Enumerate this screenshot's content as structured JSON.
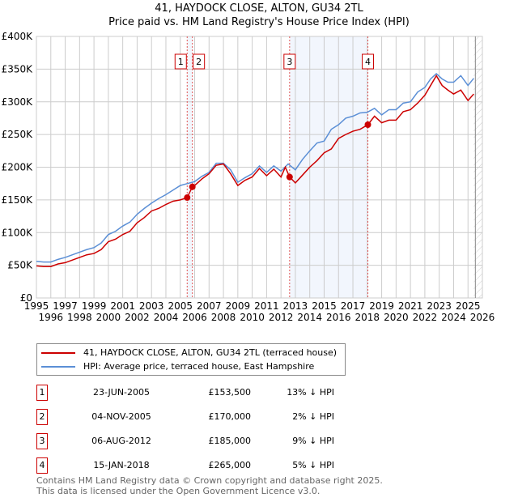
{
  "chart_data": {
    "type": "line",
    "title": "41, HAYDOCK CLOSE, ALTON, GU34 2TL",
    "subtitle": "Price paid vs. HM Land Registry's House Price Index (HPI)",
    "xlim": [
      1995,
      2026
    ],
    "ylim": [
      0,
      400000
    ],
    "x_ticks": [
      "1995",
      "1996",
      "1997",
      "1998",
      "1999",
      "2000",
      "2001",
      "2002",
      "2003",
      "2004",
      "2005",
      "2006",
      "2007",
      "2008",
      "2009",
      "2010",
      "2011",
      "2012",
      "2013",
      "2014",
      "2015",
      "2016",
      "2017",
      "2018",
      "2019",
      "2020",
      "2021",
      "2022",
      "2023",
      "2024",
      "2025",
      "2026"
    ],
    "y_ticks": [
      {
        "v": 0,
        "label": "£0"
      },
      {
        "v": 50000,
        "label": "£50K"
      },
      {
        "v": 100000,
        "label": "£100K"
      },
      {
        "v": 150000,
        "label": "£150K"
      },
      {
        "v": 200000,
        "label": "£200K"
      },
      {
        "v": 250000,
        "label": "£250K"
      },
      {
        "v": 300000,
        "label": "£300K"
      },
      {
        "v": 350000,
        "label": "£350K"
      },
      {
        "v": 400000,
        "label": "£400K"
      }
    ],
    "grid": true,
    "series": [
      {
        "name": "41, HAYDOCK CLOSE, ALTON, GU34 2TL (terraced house)",
        "color": "#cc0000",
        "points": [
          [
            1995,
            49000
          ],
          [
            1995.5,
            48000
          ],
          [
            1996,
            48000
          ],
          [
            1996.5,
            52000
          ],
          [
            1997,
            54000
          ],
          [
            1997.5,
            58000
          ],
          [
            1998,
            62000
          ],
          [
            1998.5,
            66000
          ],
          [
            1999,
            68000
          ],
          [
            1999.5,
            74000
          ],
          [
            2000,
            86000
          ],
          [
            2000.5,
            90000
          ],
          [
            2001,
            97000
          ],
          [
            2001.5,
            102000
          ],
          [
            2002,
            115000
          ],
          [
            2002.5,
            123000
          ],
          [
            2003,
            133000
          ],
          [
            2003.5,
            137000
          ],
          [
            2004,
            143000
          ],
          [
            2004.5,
            148000
          ],
          [
            2005,
            150000
          ],
          [
            2005.48,
            153500
          ],
          [
            2005.84,
            170000
          ],
          [
            2006,
            172000
          ],
          [
            2006.5,
            182000
          ],
          [
            2007,
            190000
          ],
          [
            2007.5,
            203000
          ],
          [
            2008,
            205000
          ],
          [
            2008.5,
            190000
          ],
          [
            2009,
            172000
          ],
          [
            2009.5,
            180000
          ],
          [
            2010,
            185000
          ],
          [
            2010.5,
            198000
          ],
          [
            2011,
            187000
          ],
          [
            2011.5,
            197000
          ],
          [
            2012,
            185000
          ],
          [
            2012.3,
            200000
          ],
          [
            2012.6,
            185000
          ],
          [
            2013,
            176000
          ],
          [
            2013.5,
            188000
          ],
          [
            2014,
            200000
          ],
          [
            2014.5,
            210000
          ],
          [
            2015,
            222000
          ],
          [
            2015.5,
            228000
          ],
          [
            2016,
            244000
          ],
          [
            2016.5,
            250000
          ],
          [
            2017,
            255000
          ],
          [
            2017.5,
            258000
          ],
          [
            2018.04,
            265000
          ],
          [
            2018.5,
            278000
          ],
          [
            2019,
            268000
          ],
          [
            2019.5,
            272000
          ],
          [
            2020,
            272000
          ],
          [
            2020.5,
            285000
          ],
          [
            2021,
            288000
          ],
          [
            2021.5,
            298000
          ],
          [
            2022,
            310000
          ],
          [
            2022.4,
            325000
          ],
          [
            2022.8,
            340000
          ],
          [
            2023.2,
            325000
          ],
          [
            2023.6,
            318000
          ],
          [
            2024,
            312000
          ],
          [
            2024.5,
            318000
          ],
          [
            2025,
            302000
          ],
          [
            2025.4,
            312000
          ]
        ]
      },
      {
        "name": "HPI: Average price, terraced house, East Hampshire",
        "color": "#5b8fd6",
        "points": [
          [
            1995,
            56000
          ],
          [
            1995.5,
            55000
          ],
          [
            1996,
            55000
          ],
          [
            1996.5,
            59000
          ],
          [
            1997,
            62000
          ],
          [
            1997.5,
            66000
          ],
          [
            1998,
            70000
          ],
          [
            1998.5,
            74000
          ],
          [
            1999,
            77000
          ],
          [
            1999.5,
            84000
          ],
          [
            2000,
            97000
          ],
          [
            2000.5,
            102000
          ],
          [
            2001,
            110000
          ],
          [
            2001.5,
            116000
          ],
          [
            2002,
            128000
          ],
          [
            2002.5,
            137000
          ],
          [
            2003,
            145000
          ],
          [
            2003.5,
            152000
          ],
          [
            2004,
            158000
          ],
          [
            2004.5,
            165000
          ],
          [
            2005,
            172000
          ],
          [
            2005.5,
            175000
          ],
          [
            2006,
            178000
          ],
          [
            2006.5,
            186000
          ],
          [
            2007,
            192000
          ],
          [
            2007.5,
            206000
          ],
          [
            2008,
            206000
          ],
          [
            2008.5,
            196000
          ],
          [
            2009,
            177000
          ],
          [
            2009.5,
            184000
          ],
          [
            2010,
            190000
          ],
          [
            2010.5,
            202000
          ],
          [
            2011,
            192000
          ],
          [
            2011.5,
            202000
          ],
          [
            2012,
            194000
          ],
          [
            2012.5,
            205000
          ],
          [
            2013,
            196000
          ],
          [
            2013.5,
            212000
          ],
          [
            2014,
            225000
          ],
          [
            2014.5,
            237000
          ],
          [
            2015,
            240000
          ],
          [
            2015.5,
            258000
          ],
          [
            2016,
            265000
          ],
          [
            2016.5,
            275000
          ],
          [
            2017,
            278000
          ],
          [
            2017.5,
            283000
          ],
          [
            2018,
            284000
          ],
          [
            2018.5,
            290000
          ],
          [
            2019,
            280000
          ],
          [
            2019.5,
            288000
          ],
          [
            2020,
            288000
          ],
          [
            2020.5,
            298000
          ],
          [
            2021,
            300000
          ],
          [
            2021.5,
            315000
          ],
          [
            2022,
            322000
          ],
          [
            2022.4,
            335000
          ],
          [
            2022.8,
            343000
          ],
          [
            2023.2,
            335000
          ],
          [
            2023.6,
            330000
          ],
          [
            2024,
            330000
          ],
          [
            2024.5,
            340000
          ],
          [
            2025,
            325000
          ],
          [
            2025.4,
            336000
          ]
        ]
      }
    ],
    "transactions": [
      {
        "n": "1",
        "date": "23-JUN-2005",
        "x": 2005.48,
        "price": 153500,
        "price_label": "£153,500",
        "hpi": "13% ↓ HPI"
      },
      {
        "n": "2",
        "date": "04-NOV-2005",
        "x": 2005.84,
        "price": 170000,
        "price_label": "£170,000",
        "hpi": "2% ↓ HPI"
      },
      {
        "n": "3",
        "date": "06-AUG-2012",
        "x": 2012.6,
        "price": 185000,
        "price_label": "£185,000",
        "hpi": "9% ↓ HPI"
      },
      {
        "n": "4",
        "date": "15-JAN-2018",
        "x": 2018.04,
        "price": 265000,
        "price_label": "£265,000",
        "hpi": "5% ↓ HPI"
      }
    ],
    "shaded_ranges": [
      [
        2005.48,
        2005.84
      ],
      [
        2012.6,
        2018.04
      ]
    ],
    "future_hatch_from": 2025.4,
    "legend_position": "bottom"
  },
  "footer": {
    "line1": "Contains HM Land Registry data © Crown copyright and database right 2025.",
    "line2": "This data is licensed under the Open Government Licence v3.0."
  }
}
